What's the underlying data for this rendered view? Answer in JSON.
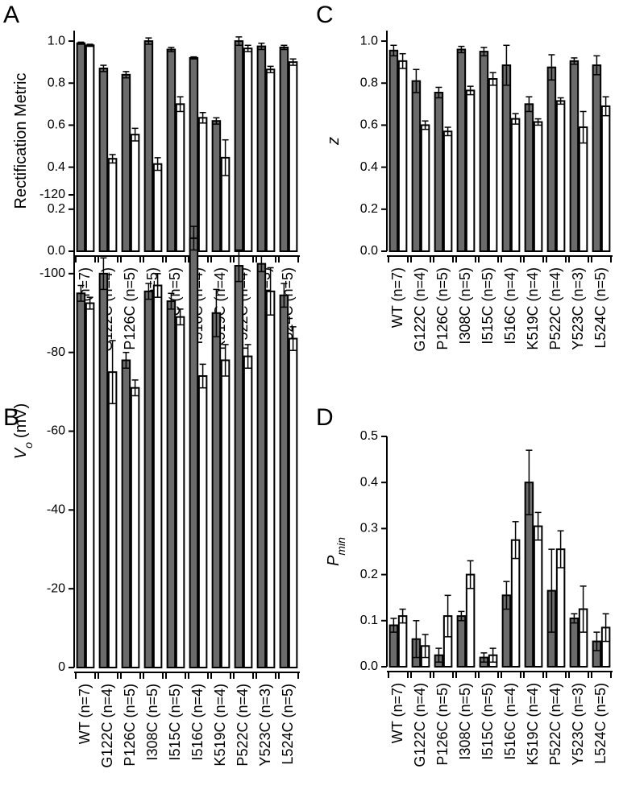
{
  "chart_data": [
    {
      "type": "bar",
      "panel": "A",
      "ylabel": "Rectification Metric",
      "categories": [
        "WT (n=7)",
        "G122C (n=4)",
        "P126C (n=5)",
        "I308C (n=5)",
        "I515C (n=5)",
        "I516C (n=4)",
        "K519C (n=4)",
        "P522C (n=4)",
        "Y523C (n=3)",
        "L524C (n=5)"
      ],
      "series": [
        {
          "color": "#6b6b6b",
          "values": [
            0.99,
            0.87,
            0.84,
            1.0,
            0.96,
            0.92,
            0.62,
            1.0,
            0.975,
            0.97
          ],
          "errors": [
            0.005,
            0.015,
            0.015,
            0.015,
            0.01,
            0.005,
            0.015,
            0.02,
            0.015,
            0.01
          ]
        },
        {
          "color": "#ffffff",
          "values": [
            0.98,
            0.44,
            0.555,
            0.415,
            0.7,
            0.635,
            0.445,
            0.965,
            0.865,
            0.9
          ],
          "errors": [
            0.005,
            0.02,
            0.03,
            0.03,
            0.035,
            0.025,
            0.085,
            0.015,
            0.015,
            0.015
          ]
        }
      ],
      "ylim": [
        0,
        1.05
      ],
      "yticks": [
        {
          "value": 0,
          "label": "0.0"
        },
        0.2,
        0.4,
        0.6,
        0.8,
        {
          "value": 1,
          "label": "1.0"
        }
      ]
    },
    {
      "type": "bar",
      "panel": "C",
      "ylabel": "z",
      "categories": [
        "WT (n=7)",
        "G122C (n=4)",
        "P126C (n=5)",
        "I308C (n=5)",
        "I515C (n=5)",
        "I516C (n=4)",
        "K519C (n=4)",
        "P522C (n=4)",
        "Y523C (n=3)",
        "L524C (n=5)"
      ],
      "series": [
        {
          "color": "#6b6b6b",
          "values": [
            0.955,
            0.81,
            0.755,
            0.96,
            0.95,
            0.885,
            0.7,
            0.875,
            0.905,
            0.885
          ],
          "errors": [
            0.025,
            0.055,
            0.025,
            0.015,
            0.02,
            0.095,
            0.035,
            0.06,
            0.015,
            0.045
          ]
        },
        {
          "color": "#ffffff",
          "values": [
            0.905,
            0.6,
            0.57,
            0.765,
            0.82,
            0.63,
            0.615,
            0.715,
            0.59,
            0.69
          ],
          "errors": [
            0.035,
            0.02,
            0.02,
            0.02,
            0.03,
            0.025,
            0.015,
            0.015,
            0.075,
            0.045
          ]
        }
      ],
      "ylim": [
        0,
        1.05
      ],
      "yticks": [
        {
          "value": 0,
          "label": "0.0"
        },
        0.2,
        0.4,
        0.6,
        0.8,
        {
          "value": 1,
          "label": "1.0"
        }
      ]
    },
    {
      "type": "bar",
      "panel": "B",
      "ylabel": "V",
      "ylabel_sub": "o",
      "ylabel_unit": "(mV)",
      "categories": [
        "WT (n=7)",
        "G122C (n=4)",
        "P126C (n=5)",
        "I308C (n=5)",
        "I515C (n=5)",
        "I516C (n=4)",
        "K519C (n=4)",
        "P522C (n=4)",
        "Y523C (n=3)",
        "L524C (n=5)"
      ],
      "series": [
        {
          "color": "#6b6b6b",
          "values": [
            -95,
            -100,
            -78,
            -95.5,
            -93,
            -109,
            -90,
            -102,
            -102.5,
            -94.5
          ],
          "errors": [
            2,
            4,
            2,
            2,
            2,
            3,
            6,
            4,
            2,
            3
          ]
        },
        {
          "color": "#ffffff",
          "values": [
            -92.5,
            -75,
            -71,
            -97,
            -89,
            -74,
            -78,
            -79,
            -95.5,
            -83.5
          ],
          "errors": [
            1.5,
            8,
            2,
            3,
            2,
            3,
            4,
            3,
            6,
            3
          ]
        }
      ],
      "ylim": [
        0,
        -120
      ],
      "yticks": [
        0,
        -20,
        -40,
        -60,
        -80,
        -100,
        -120
      ]
    },
    {
      "type": "bar",
      "panel": "D",
      "ylabel": "P",
      "ylabel_sub": "min",
      "categories": [
        "WT (n=7)",
        "G122C (n=4)",
        "P126C (n=5)",
        "I308C (n=5)",
        "I515C (n=5)",
        "I516C (n=4)",
        "K519C (n=4)",
        "P522C (n=4)",
        "Y523C (n=3)",
        "L524C (n=5)"
      ],
      "series": [
        {
          "color": "#6b6b6b",
          "values": [
            0.09,
            0.06,
            0.025,
            0.11,
            0.02,
            0.155,
            0.4,
            0.165,
            0.105,
            0.055
          ],
          "errors": [
            0.015,
            0.04,
            0.015,
            0.01,
            0.01,
            0.03,
            0.07,
            0.09,
            0.01,
            0.02
          ]
        },
        {
          "color": "#ffffff",
          "values": [
            0.11,
            0.045,
            0.11,
            0.2,
            0.025,
            0.275,
            0.305,
            0.255,
            0.125,
            0.085
          ],
          "errors": [
            0.015,
            0.025,
            0.045,
            0.03,
            0.015,
            0.04,
            0.03,
            0.04,
            0.05,
            0.03
          ]
        }
      ],
      "ylim": [
        0,
        0.5
      ],
      "yticks": [
        {
          "value": 0,
          "label": "0.0"
        },
        0.1,
        0.2,
        0.3,
        0.4,
        0.5
      ]
    }
  ]
}
